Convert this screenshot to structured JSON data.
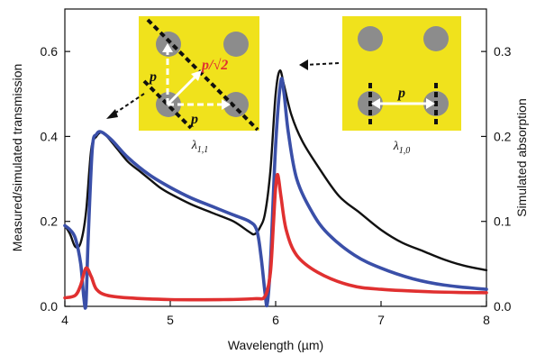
{
  "chart_data": {
    "type": "line",
    "title": "",
    "xlabel": "Wavelength (µm)",
    "ylabel_left": "Measured/simulated transmission",
    "ylabel_right": "Simulated absorption",
    "xlim": [
      4,
      8
    ],
    "ylim_left": [
      0,
      0.7
    ],
    "ylim_right": [
      0,
      0.35
    ],
    "xticks": [
      "4",
      "5",
      "6",
      "7",
      "8"
    ],
    "yticks_left": [
      "0.0",
      "0.2",
      "0.4",
      "0.6"
    ],
    "yticks_right": [
      "0.0",
      "0.1",
      "0.2",
      "0.3"
    ],
    "grid": false,
    "legend": "none",
    "series": [
      {
        "color": "#111111",
        "axis": "left",
        "points": [
          [
            4.0,
            0.19
          ],
          [
            4.05,
            0.17
          ],
          [
            4.1,
            0.14
          ],
          [
            4.15,
            0.15
          ],
          [
            4.2,
            0.22
          ],
          [
            4.25,
            0.37
          ],
          [
            4.3,
            0.4
          ],
          [
            4.35,
            0.41
          ],
          [
            4.4,
            0.4
          ],
          [
            4.5,
            0.37
          ],
          [
            4.6,
            0.34
          ],
          [
            4.7,
            0.32
          ],
          [
            4.8,
            0.3
          ],
          [
            4.9,
            0.28
          ],
          [
            5.0,
            0.265
          ],
          [
            5.2,
            0.24
          ],
          [
            5.4,
            0.22
          ],
          [
            5.6,
            0.2
          ],
          [
            5.75,
            0.175
          ],
          [
            5.8,
            0.17
          ],
          [
            5.85,
            0.185
          ],
          [
            5.9,
            0.22
          ],
          [
            5.95,
            0.32
          ],
          [
            6.0,
            0.5
          ],
          [
            6.04,
            0.555
          ],
          [
            6.08,
            0.52
          ],
          [
            6.15,
            0.45
          ],
          [
            6.25,
            0.39
          ],
          [
            6.4,
            0.33
          ],
          [
            6.6,
            0.26
          ],
          [
            6.8,
            0.22
          ],
          [
            7.0,
            0.18
          ],
          [
            7.2,
            0.15
          ],
          [
            7.4,
            0.13
          ],
          [
            7.6,
            0.11
          ],
          [
            7.8,
            0.095
          ],
          [
            8.0,
            0.085
          ]
        ]
      },
      {
        "color": "#3a4fa8",
        "axis": "left",
        "points": [
          [
            4.0,
            0.19
          ],
          [
            4.05,
            0.18
          ],
          [
            4.1,
            0.16
          ],
          [
            4.15,
            0.1
          ],
          [
            4.18,
            0.02
          ],
          [
            4.2,
            0.005
          ],
          [
            4.22,
            0.15
          ],
          [
            4.26,
            0.37
          ],
          [
            4.3,
            0.405
          ],
          [
            4.35,
            0.41
          ],
          [
            4.45,
            0.39
          ],
          [
            4.6,
            0.35
          ],
          [
            4.8,
            0.31
          ],
          [
            5.0,
            0.28
          ],
          [
            5.2,
            0.255
          ],
          [
            5.4,
            0.235
          ],
          [
            5.6,
            0.215
          ],
          [
            5.75,
            0.2
          ],
          [
            5.82,
            0.18
          ],
          [
            5.86,
            0.12
          ],
          [
            5.9,
            0.03
          ],
          [
            5.92,
            0.005
          ],
          [
            5.95,
            0.1
          ],
          [
            6.0,
            0.38
          ],
          [
            6.05,
            0.53
          ],
          [
            6.08,
            0.5
          ],
          [
            6.12,
            0.41
          ],
          [
            6.2,
            0.3
          ],
          [
            6.35,
            0.22
          ],
          [
            6.5,
            0.17
          ],
          [
            6.75,
            0.12
          ],
          [
            7.0,
            0.09
          ],
          [
            7.3,
            0.065
          ],
          [
            7.6,
            0.05
          ],
          [
            8.0,
            0.04
          ]
        ]
      },
      {
        "color": "#e03030",
        "axis": "right",
        "points": [
          [
            4.0,
            0.01
          ],
          [
            4.1,
            0.013
          ],
          [
            4.15,
            0.025
          ],
          [
            4.2,
            0.045
          ],
          [
            4.25,
            0.035
          ],
          [
            4.3,
            0.02
          ],
          [
            4.4,
            0.013
          ],
          [
            4.6,
            0.01
          ],
          [
            5.0,
            0.008
          ],
          [
            5.5,
            0.008
          ],
          [
            5.8,
            0.009
          ],
          [
            5.9,
            0.012
          ],
          [
            5.95,
            0.04
          ],
          [
            5.98,
            0.1
          ],
          [
            6.0,
            0.14
          ],
          [
            6.02,
            0.155
          ],
          [
            6.05,
            0.13
          ],
          [
            6.1,
            0.09
          ],
          [
            6.2,
            0.06
          ],
          [
            6.4,
            0.04
          ],
          [
            6.7,
            0.025
          ],
          [
            7.0,
            0.02
          ],
          [
            7.5,
            0.017
          ],
          [
            8.0,
            0.016
          ]
        ]
      }
    ]
  },
  "insets": [
    {
      "label_name": "λ",
      "label_sub": "1,1",
      "annotations": [
        "p",
        "p",
        "p/√2"
      ]
    },
    {
      "label_name": "λ",
      "label_sub": "1,0",
      "annotations": [
        "p"
      ]
    }
  ],
  "colors": {
    "inset_background": "#f0e21c",
    "hole": "#8c8c8c",
    "red_text": "#e03030"
  }
}
